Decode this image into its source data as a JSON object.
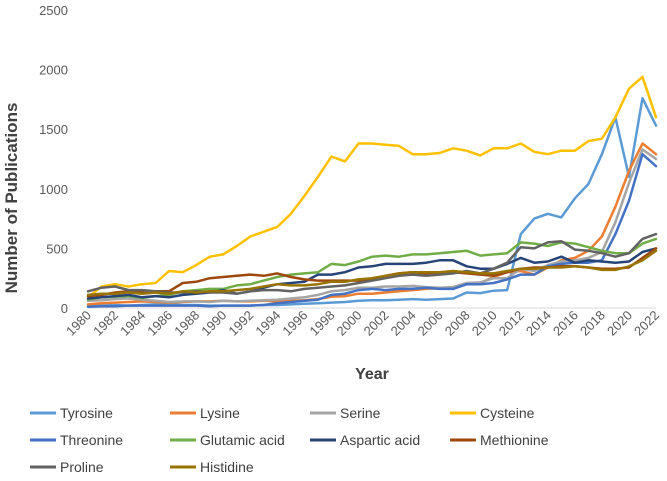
{
  "chart_data": {
    "type": "line",
    "title": "",
    "xlabel": "Year",
    "ylabel": "Number of Publications",
    "ylim": [
      0,
      2500
    ],
    "yticks": [
      0,
      500,
      1000,
      1500,
      2000,
      2500
    ],
    "xtick_labels": [
      "1980",
      "1982",
      "1984",
      "1986",
      "1988",
      "1990",
      "1992",
      "1994",
      "1996",
      "1998",
      "2000",
      "2002",
      "2004",
      "2006",
      "2008",
      "2010",
      "2012",
      "2014",
      "2016",
      "2018",
      "2020",
      "2022"
    ],
    "grid": false,
    "legend": "bottom",
    "x": [
      1980,
      1981,
      1982,
      1983,
      1984,
      1985,
      1986,
      1987,
      1988,
      1989,
      1990,
      1991,
      1992,
      1993,
      1994,
      1995,
      1996,
      1997,
      1998,
      1999,
      2000,
      2001,
      2002,
      2003,
      2004,
      2005,
      2006,
      2007,
      2008,
      2009,
      2010,
      2011,
      2012,
      2013,
      2014,
      2015,
      2016,
      2017,
      2018,
      2019,
      2020,
      2021,
      2022
    ],
    "series": [
      {
        "name": "Tyrosine",
        "color": "#5b9bd5",
        "values": [
          15,
          20,
          25,
          20,
          25,
          30,
          30,
          25,
          25,
          20,
          20,
          20,
          20,
          25,
          25,
          30,
          35,
          40,
          45,
          50,
          60,
          65,
          65,
          70,
          75,
          70,
          75,
          80,
          130,
          125,
          145,
          150,
          620,
          750,
          790,
          760,
          920,
          1040,
          1290,
          1600,
          1100,
          1760,
          1530
        ]
      },
      {
        "name": "Lysine",
        "color": "#ed7d31",
        "values": [
          30,
          40,
          45,
          50,
          55,
          50,
          45,
          50,
          55,
          55,
          60,
          55,
          55,
          60,
          55,
          60,
          65,
          75,
          95,
          100,
          120,
          120,
          130,
          140,
          150,
          160,
          165,
          175,
          200,
          210,
          260,
          300,
          310,
          280,
          340,
          400,
          420,
          480,
          600,
          850,
          1150,
          1380,
          1290
        ]
      },
      {
        "name": "Serine",
        "color": "#a5a5a5",
        "values": [
          60,
          65,
          75,
          80,
          70,
          60,
          50,
          55,
          55,
          50,
          60,
          55,
          60,
          65,
          70,
          80,
          90,
          110,
          140,
          150,
          170,
          170,
          180,
          180,
          185,
          175,
          170,
          175,
          210,
          215,
          250,
          250,
          330,
          310,
          360,
          390,
          400,
          420,
          470,
          720,
          1050,
          1330,
          1250
        ]
      },
      {
        "name": "Cysteine",
        "color": "#ffc000",
        "values": [
          90,
          180,
          200,
          180,
          200,
          210,
          310,
          300,
          360,
          430,
          450,
          520,
          600,
          640,
          680,
          790,
          940,
          1100,
          1270,
          1230,
          1380,
          1380,
          1370,
          1360,
          1290,
          1290,
          1300,
          1340,
          1320,
          1280,
          1340,
          1340,
          1380,
          1310,
          1290,
          1320,
          1320,
          1400,
          1420,
          1600,
          1840,
          1940,
          1600
        ]
      },
      {
        "name": "Threonine",
        "color": "#4472c4",
        "values": [
          10,
          15,
          15,
          20,
          20,
          20,
          20,
          20,
          20,
          15,
          20,
          20,
          20,
          25,
          40,
          50,
          60,
          70,
          110,
          120,
          150,
          160,
          150,
          160,
          160,
          170,
          160,
          160,
          200,
          200,
          210,
          240,
          280,
          280,
          350,
          370,
          380,
          380,
          400,
          620,
          900,
          1290,
          1190
        ]
      },
      {
        "name": "Glutamic acid",
        "color": "#70ad47",
        "values": [
          70,
          90,
          95,
          100,
          85,
          100,
          110,
          140,
          150,
          160,
          160,
          190,
          200,
          230,
          260,
          280,
          290,
          300,
          370,
          360,
          390,
          430,
          440,
          430,
          450,
          450,
          460,
          470,
          480,
          440,
          450,
          460,
          550,
          540,
          520,
          550,
          540,
          510,
          480,
          460,
          460,
          540,
          580
        ]
      },
      {
        "name": "Aspartic acid",
        "color": "#264478",
        "values": [
          80,
          90,
          100,
          110,
          90,
          100,
          90,
          110,
          120,
          130,
          150,
          120,
          140,
          170,
          200,
          210,
          220,
          280,
          280,
          300,
          340,
          350,
          370,
          370,
          370,
          380,
          400,
          400,
          350,
          330,
          330,
          370,
          420,
          380,
          390,
          430,
          380,
          400,
          390,
          380,
          390,
          470,
          500
        ]
      },
      {
        "name": "Methionine",
        "color": "#9e480e",
        "values": [
          100,
          110,
          130,
          140,
          140,
          140,
          140,
          210,
          220,
          250,
          260,
          270,
          280,
          270,
          290,
          260,
          240,
          230,
          230,
          230,
          230,
          240,
          270,
          290,
          300,
          290,
          290,
          300,
          290,
          280,
          270,
          300,
          330,
          340,
          340,
          350,
          350,
          340,
          330,
          330,
          340,
          420,
          500
        ]
      },
      {
        "name": "Proline",
        "color": "#636363",
        "values": [
          140,
          170,
          180,
          150,
          150,
          140,
          130,
          130,
          140,
          130,
          130,
          120,
          140,
          150,
          150,
          140,
          160,
          170,
          180,
          190,
          210,
          230,
          250,
          270,
          280,
          270,
          280,
          290,
          310,
          290,
          330,
          380,
          510,
          500,
          550,
          560,
          490,
          480,
          460,
          430,
          460,
          580,
          620
        ]
      },
      {
        "name": "Histidine",
        "color": "#997300",
        "values": [
          110,
          120,
          120,
          130,
          120,
          130,
          120,
          140,
          130,
          140,
          140,
          150,
          160,
          180,
          200,
          190,
          190,
          200,
          220,
          220,
          240,
          250,
          270,
          290,
          300,
          300,
          300,
          310,
          300,
          290,
          290,
          310,
          330,
          330,
          340,
          340,
          350,
          340,
          320,
          320,
          350,
          400,
          480
        ]
      }
    ]
  }
}
